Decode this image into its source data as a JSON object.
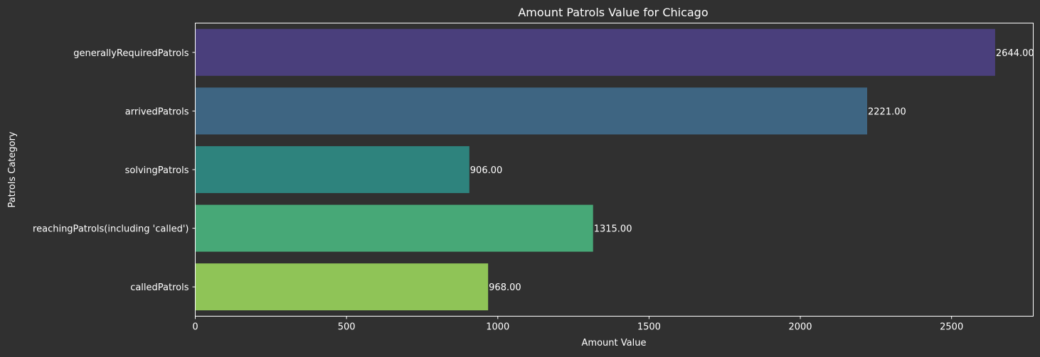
{
  "chart_data": {
    "type": "bar",
    "orientation": "horizontal",
    "title": "Amount Patrols Value for Chicago",
    "xlabel": "Amount Value",
    "ylabel": "Patrols Category",
    "categories": [
      "generallyRequiredPatrols",
      "arrivedPatrols",
      "solvingPatrols",
      "reachingPatrols(including 'called')",
      "calledPatrols"
    ],
    "values": [
      2644,
      2221,
      906,
      1315,
      968
    ],
    "data_labels": [
      "2644.00",
      "2221.00",
      "906.00",
      "1315.00",
      "968.00"
    ],
    "colors": [
      "#4a3f7c",
      "#3e6582",
      "#2e837d",
      "#47a877",
      "#8fc457"
    ],
    "xlim": [
      0,
      2770
    ],
    "xticks": [
      0,
      500,
      1000,
      1500,
      2000,
      2500
    ],
    "xtick_labels": [
      "0",
      "500",
      "1000",
      "1500",
      "2000",
      "2500"
    ],
    "grid": false,
    "legend": "none",
    "background": "#303030",
    "text_color": "#ffffff"
  }
}
